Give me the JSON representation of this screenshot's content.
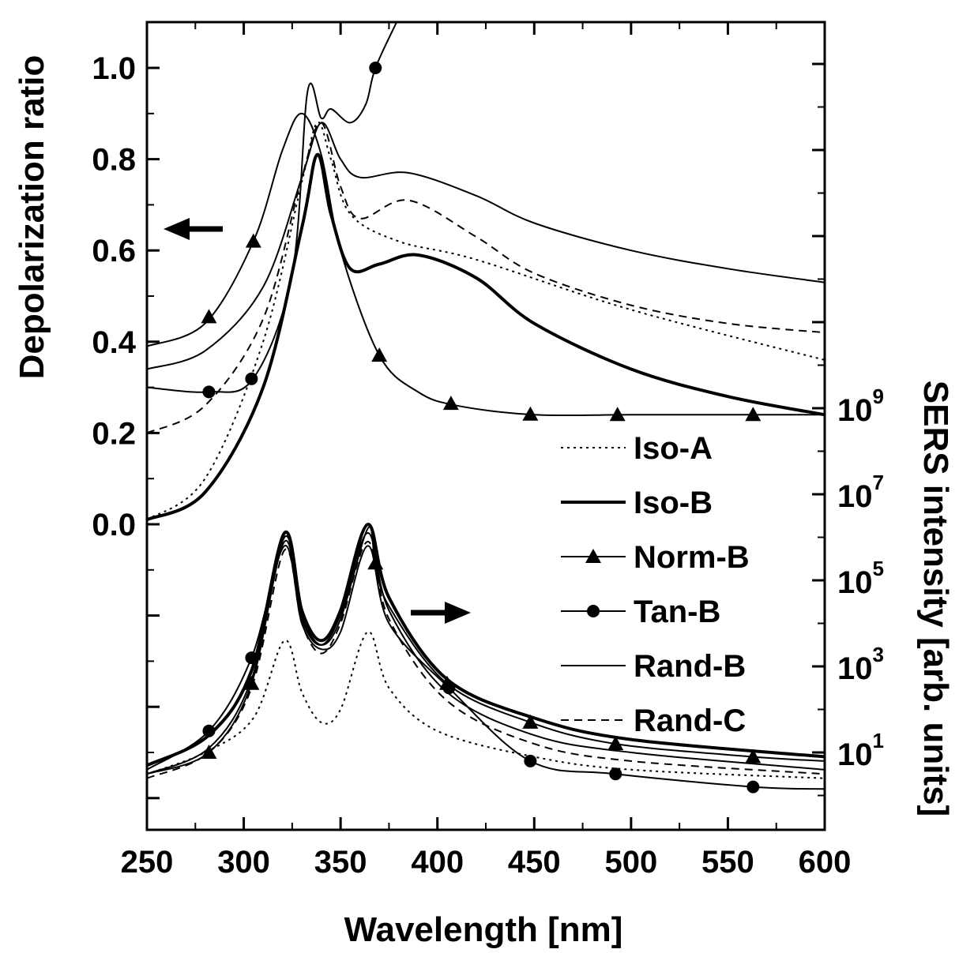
{
  "chart_data": {
    "type": "line",
    "xlabel": "Wavelength [nm]",
    "ylabel_left": "Depolarization ratio",
    "ylabel_right": "SERS intensity [arb. units]",
    "xlim": [
      250,
      600
    ],
    "x_ticks": [
      "250",
      "300",
      "350",
      "400",
      "450",
      "500",
      "550",
      "600"
    ],
    "y_left_ticks": [
      "0.0",
      "0.2",
      "0.4",
      "0.6",
      "0.8",
      "1.0"
    ],
    "y_right_ticks": [
      {
        "base": "10",
        "exp": "1"
      },
      {
        "base": "10",
        "exp": "3"
      },
      {
        "base": "10",
        "exp": "5"
      },
      {
        "base": "10",
        "exp": "7"
      },
      {
        "base": "10",
        "exp": "9"
      }
    ],
    "legend": [
      "Iso-A",
      "Iso-B",
      "Norm-B",
      "Tan-B",
      "Rand-B",
      "Rand-C"
    ],
    "legend_position": "right, below depolarization curves",
    "arrows": [
      {
        "points_to": "left axis",
        "near_x": 270,
        "near_y_left": 0.65
      },
      {
        "points_to": "right axis",
        "near_x": 415,
        "near_y_log": 4.2
      }
    ],
    "depolarization_series": [
      {
        "name": "Iso-A",
        "style": "dotted",
        "marker": "none",
        "points": [
          [
            250,
            0.01
          ],
          [
            280,
            0.1
          ],
          [
            310,
            0.4
          ],
          [
            330,
            0.75
          ],
          [
            338,
            0.88
          ],
          [
            345,
            0.8
          ],
          [
            355,
            0.68
          ],
          [
            380,
            0.62
          ],
          [
            420,
            0.58
          ],
          [
            500,
            0.47
          ],
          [
            600,
            0.36
          ]
        ]
      },
      {
        "name": "Iso-B",
        "style": "thick",
        "marker": "none",
        "points": [
          [
            250,
            0.01
          ],
          [
            280,
            0.07
          ],
          [
            310,
            0.3
          ],
          [
            330,
            0.65
          ],
          [
            338,
            0.81
          ],
          [
            345,
            0.68
          ],
          [
            355,
            0.56
          ],
          [
            370,
            0.57
          ],
          [
            390,
            0.59
          ],
          [
            420,
            0.54
          ],
          [
            450,
            0.44
          ],
          [
            500,
            0.34
          ],
          [
            550,
            0.28
          ],
          [
            600,
            0.24
          ]
        ]
      },
      {
        "name": "Norm-B",
        "style": "solid",
        "marker": "triangle",
        "points": [
          [
            250,
            0.39
          ],
          [
            280,
            0.44
          ],
          [
            305,
            0.62
          ],
          [
            320,
            0.82
          ],
          [
            330,
            0.9
          ],
          [
            340,
            0.81
          ],
          [
            350,
            0.6
          ],
          [
            370,
            0.37
          ],
          [
            390,
            0.29
          ],
          [
            410,
            0.26
          ],
          [
            450,
            0.24
          ],
          [
            500,
            0.24
          ],
          [
            560,
            0.24
          ],
          [
            600,
            0.24
          ]
        ]
      },
      {
        "name": "Tan-B",
        "style": "solid",
        "marker": "circle",
        "points": [
          [
            250,
            0.3
          ],
          [
            282,
            0.29
          ],
          [
            305,
            0.32
          ],
          [
            325,
            0.55
          ],
          [
            333,
            0.95
          ],
          [
            340,
            0.89
          ],
          [
            345,
            0.91
          ],
          [
            355,
            0.88
          ],
          [
            363,
            0.92
          ],
          [
            368,
            1.0
          ],
          [
            380,
            1.11
          ],
          [
            385,
            1.16
          ]
        ]
      },
      {
        "name": "Rand-B",
        "style": "thin",
        "marker": "none",
        "points": [
          [
            250,
            0.34
          ],
          [
            280,
            0.38
          ],
          [
            310,
            0.52
          ],
          [
            330,
            0.76
          ],
          [
            340,
            0.88
          ],
          [
            350,
            0.8
          ],
          [
            360,
            0.76
          ],
          [
            385,
            0.77
          ],
          [
            420,
            0.72
          ],
          [
            450,
            0.66
          ],
          [
            500,
            0.6
          ],
          [
            550,
            0.56
          ],
          [
            600,
            0.53
          ]
        ]
      },
      {
        "name": "Rand-C",
        "style": "dashed",
        "marker": "none",
        "points": [
          [
            250,
            0.2
          ],
          [
            280,
            0.26
          ],
          [
            310,
            0.45
          ],
          [
            330,
            0.76
          ],
          [
            340,
            0.88
          ],
          [
            350,
            0.74
          ],
          [
            360,
            0.67
          ],
          [
            385,
            0.71
          ],
          [
            420,
            0.63
          ],
          [
            450,
            0.55
          ],
          [
            500,
            0.48
          ],
          [
            550,
            0.44
          ],
          [
            600,
            0.42
          ]
        ]
      }
    ],
    "sers_series_log10": [
      {
        "name": "Iso-A",
        "style": "dotted",
        "marker": "none",
        "points": [
          [
            250,
            0.5
          ],
          [
            280,
            1.0
          ],
          [
            305,
            1.8
          ],
          [
            321,
            3.6
          ],
          [
            330,
            2.4
          ],
          [
            340,
            1.7
          ],
          [
            350,
            2.0
          ],
          [
            364,
            3.8
          ],
          [
            375,
            2.5
          ],
          [
            400,
            1.5
          ],
          [
            450,
            0.9
          ],
          [
            500,
            0.6
          ],
          [
            600,
            0.4
          ]
        ]
      },
      {
        "name": "Iso-B",
        "style": "thick",
        "marker": "none",
        "points": [
          [
            250,
            0.7
          ],
          [
            282,
            1.4
          ],
          [
            304,
            2.9
          ],
          [
            321,
            6.1
          ],
          [
            330,
            4.3
          ],
          [
            340,
            3.6
          ],
          [
            350,
            4.3
          ],
          [
            364,
            6.3
          ],
          [
            375,
            4.6
          ],
          [
            405,
            2.7
          ],
          [
            450,
            1.8
          ],
          [
            500,
            1.3
          ],
          [
            600,
            0.9
          ]
        ]
      },
      {
        "name": "Norm-B",
        "style": "solid",
        "marker": "triangle",
        "points": [
          [
            250,
            0.5
          ],
          [
            282,
            1.0
          ],
          [
            304,
            2.6
          ],
          [
            321,
            6.0
          ],
          [
            330,
            4.2
          ],
          [
            340,
            3.5
          ],
          [
            350,
            4.1
          ],
          [
            364,
            6.2
          ],
          [
            368,
            5.4
          ],
          [
            375,
            4.4
          ],
          [
            405,
            2.6
          ],
          [
            448,
            1.7
          ],
          [
            492,
            1.2
          ],
          [
            563,
            0.9
          ],
          [
            600,
            0.8
          ]
        ]
      },
      {
        "name": "Tan-B",
        "style": "solid",
        "marker": "circle",
        "points": [
          [
            250,
            0.6
          ],
          [
            282,
            1.5
          ],
          [
            304,
            3.2
          ],
          [
            321,
            5.8
          ],
          [
            330,
            4.0
          ],
          [
            340,
            3.4
          ],
          [
            350,
            3.8
          ],
          [
            364,
            5.8
          ],
          [
            375,
            4.0
          ],
          [
            406,
            2.5
          ],
          [
            448,
            0.8
          ],
          [
            492,
            0.5
          ],
          [
            563,
            0.2
          ],
          [
            600,
            0.15
          ]
        ]
      },
      {
        "name": "Rand-B",
        "style": "thin",
        "marker": "none",
        "points": [
          [
            250,
            0.5
          ],
          [
            282,
            1.1
          ],
          [
            304,
            2.7
          ],
          [
            321,
            5.9
          ],
          [
            330,
            4.1
          ],
          [
            340,
            3.5
          ],
          [
            350,
            4.2
          ],
          [
            364,
            6.1
          ],
          [
            375,
            4.3
          ],
          [
            405,
            2.4
          ],
          [
            450,
            1.4
          ],
          [
            500,
            1.0
          ],
          [
            600,
            0.6
          ]
        ]
      },
      {
        "name": "Rand-C",
        "style": "dashed",
        "marker": "none",
        "points": [
          [
            250,
            0.4
          ],
          [
            282,
            1.0
          ],
          [
            304,
            2.5
          ],
          [
            321,
            5.7
          ],
          [
            330,
            4.0
          ],
          [
            340,
            3.3
          ],
          [
            350,
            4.0
          ],
          [
            364,
            5.9
          ],
          [
            375,
            4.1
          ],
          [
            405,
            2.2
          ],
          [
            450,
            1.2
          ],
          [
            500,
            0.8
          ],
          [
            600,
            0.5
          ]
        ]
      }
    ]
  }
}
